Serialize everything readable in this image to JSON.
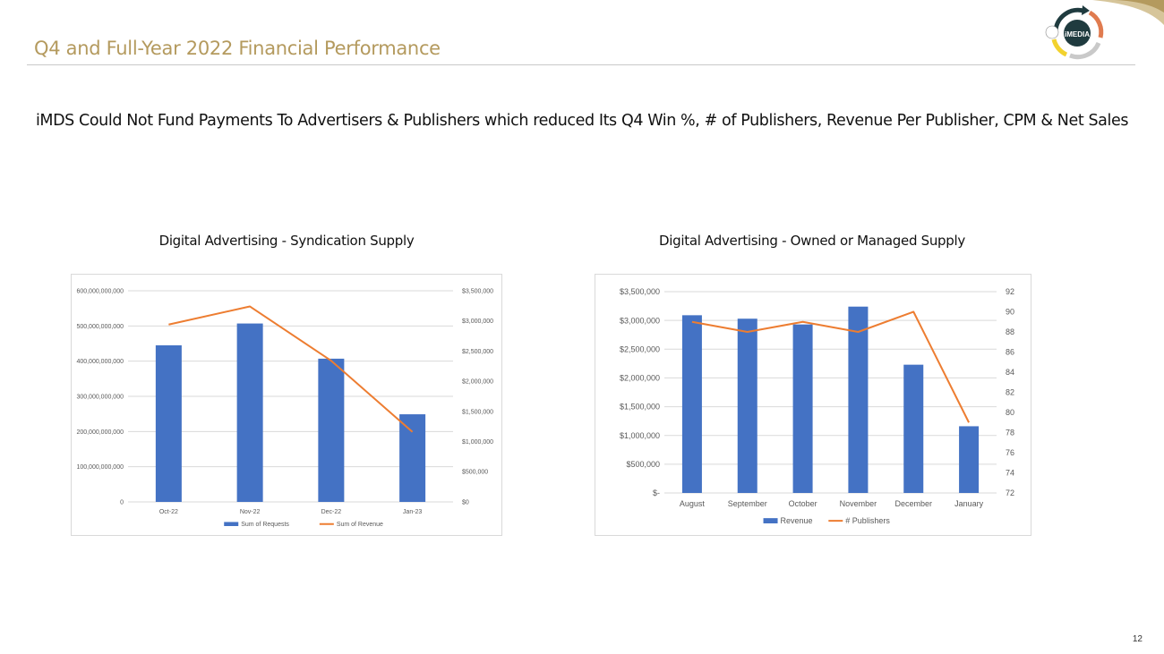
{
  "slide": {
    "title": "Q4 and Full-Year 2022 Financial Performance",
    "headline": "iMDS Could Not Fund Payments To Advertisers & Publishers which reduced Its Q4 Win %, # of Publishers, Revenue Per Publisher, CPM &  Net Sales",
    "page_number": "12",
    "logo_text": "iMEDIA",
    "colors": {
      "title": "#b49a5e",
      "bar": "#4472c4",
      "line": "#ed7d31",
      "grid": "#d9d9d9",
      "axis_text": "#595959"
    }
  },
  "chart_data": [
    {
      "type": "bar",
      "title": "Digital Advertising  - Syndication Supply",
      "categories": [
        "Oct-22",
        "Nov-22",
        "Dec-22",
        "Jan-23"
      ],
      "ylim": [
        0,
        600000000000
      ],
      "y2lim": [
        0,
        3500000
      ],
      "y_ticks": [
        "0",
        "100,000,000,000",
        "200,000,000,000",
        "300,000,000,000",
        "400,000,000,000",
        "500,000,000,000",
        "600,000,000,000"
      ],
      "y2_ticks": [
        "$0",
        "$500,000",
        "$1,000,000",
        "$1,500,000",
        "$2,000,000",
        "$2,500,000",
        "$3,000,000",
        "$3,500,000"
      ],
      "series": [
        {
          "name": "Sum of Requests",
          "kind": "bar",
          "axis": "left",
          "values": [
            445000000000,
            507000000000,
            407000000000,
            249000000000
          ]
        },
        {
          "name": "Sum of Revenue",
          "kind": "line",
          "axis": "right",
          "values": [
            2940000,
            3240000,
            2340000,
            1160000
          ]
        }
      ],
      "legend": "bottom",
      "grid": true
    },
    {
      "type": "bar",
      "title": "Digital Advertising  - Owned or Managed Supply",
      "categories": [
        "August",
        "September",
        "October",
        "November",
        "December",
        "January"
      ],
      "ylim": [
        0,
        3500000
      ],
      "y2lim": [
        72,
        92
      ],
      "y_ticks": [
        "$-",
        "$500,000",
        "$1,000,000",
        "$1,500,000",
        "$2,000,000",
        "$2,500,000",
        "$3,000,000",
        "$3,500,000"
      ],
      "y2_ticks": [
        "72",
        "74",
        "76",
        "78",
        "80",
        "82",
        "84",
        "86",
        "88",
        "90",
        "92"
      ],
      "series": [
        {
          "name": "Revenue",
          "kind": "bar",
          "axis": "left",
          "values": [
            3090000,
            3030000,
            2930000,
            3240000,
            2230000,
            1160000
          ]
        },
        {
          "name": "# Publishers",
          "kind": "line",
          "axis": "right",
          "values": [
            89,
            88,
            89,
            88,
            90,
            79
          ]
        }
      ],
      "legend": "bottom",
      "grid": true
    }
  ]
}
